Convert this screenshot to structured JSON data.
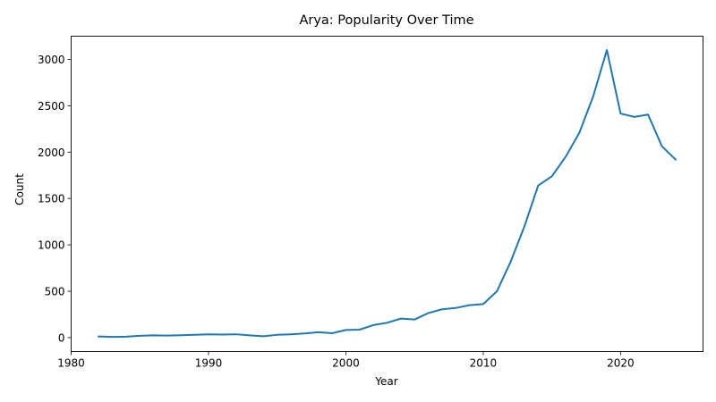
{
  "chart_data": {
    "type": "line",
    "title": "Arya: Popularity Over Time",
    "xlabel": "Year",
    "ylabel": "Count",
    "xlim": [
      1980,
      2026
    ],
    "ylim": [
      -150,
      3250
    ],
    "xticks": [
      1980,
      1990,
      2000,
      2010,
      2020
    ],
    "yticks": [
      0,
      500,
      1000,
      1500,
      2000,
      2500,
      3000
    ],
    "grid": false,
    "color": "#1f77b4",
    "series": [
      {
        "x": [
          1982,
          1983,
          1984,
          1985,
          1986,
          1987,
          1988,
          1989,
          1990,
          1991,
          1992,
          1993,
          1994,
          1995,
          1996,
          1997,
          1998,
          1999,
          2000,
          2001,
          2002,
          2003,
          2004,
          2005,
          2006,
          2007,
          2008,
          2009,
          2010,
          2011,
          2012,
          2013,
          2014,
          2015,
          2016,
          2017,
          2018,
          2019,
          2020,
          2021,
          2022,
          2023,
          2024
        ],
        "y": [
          12,
          8,
          10,
          20,
          24,
          22,
          26,
          30,
          36,
          33,
          36,
          24,
          15,
          30,
          36,
          45,
          58,
          48,
          82,
          86,
          135,
          160,
          205,
          195,
          265,
          305,
          320,
          350,
          362,
          500,
          820,
          1200,
          1640,
          1740,
          1950,
          2210,
          2600,
          3100,
          2415,
          2380,
          2405,
          2065,
          1920
        ]
      }
    ]
  }
}
